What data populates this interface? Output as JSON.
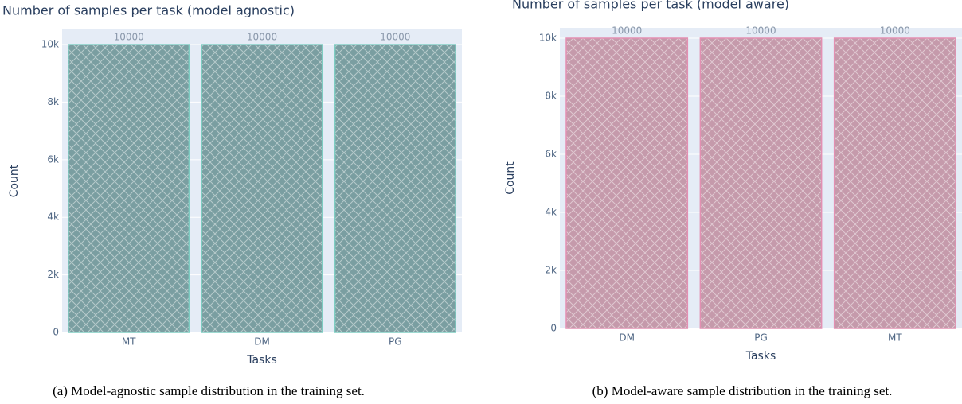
{
  "chart_data": [
    {
      "type": "bar",
      "title": "Number of samples per task (model agnostic)",
      "categories": [
        "MT",
        "DM",
        "PG"
      ],
      "values": [
        10000,
        10000,
        10000
      ],
      "xlabel": "Tasks",
      "ylabel": "Count",
      "ylim": [
        0,
        10526
      ],
      "yticks": [
        0,
        {
          "value": 2000,
          "label": "2k"
        },
        {
          "value": 4000,
          "label": "4k"
        },
        {
          "value": 6000,
          "label": "6k"
        },
        {
          "value": 8000,
          "label": "8k"
        },
        {
          "value": 10000,
          "label": "10k"
        }
      ],
      "grid": true,
      "color": "#7a9ea1",
      "line_color": "#7ecdc2",
      "caption": "(a) Model-agnostic sample distribution in the training set."
    },
    {
      "type": "bar",
      "title": "Number of samples per task (model aware)",
      "categories": [
        "DM",
        "PG",
        "MT"
      ],
      "values": [
        10000,
        10000,
        10000
      ],
      "xlabel": "Tasks",
      "ylabel": "Count",
      "ylim": [
        0,
        10356
      ],
      "yticks": [
        0,
        {
          "value": 2000,
          "label": "2k"
        },
        {
          "value": 4000,
          "label": "4k"
        },
        {
          "value": 6000,
          "label": "6k"
        },
        {
          "value": 8000,
          "label": "8k"
        },
        {
          "value": 10000,
          "label": "10k"
        }
      ],
      "grid": true,
      "color": "#c59aab",
      "line_color": "#e390b2",
      "caption": "(b) Model-aware sample distribution in the training set."
    }
  ]
}
